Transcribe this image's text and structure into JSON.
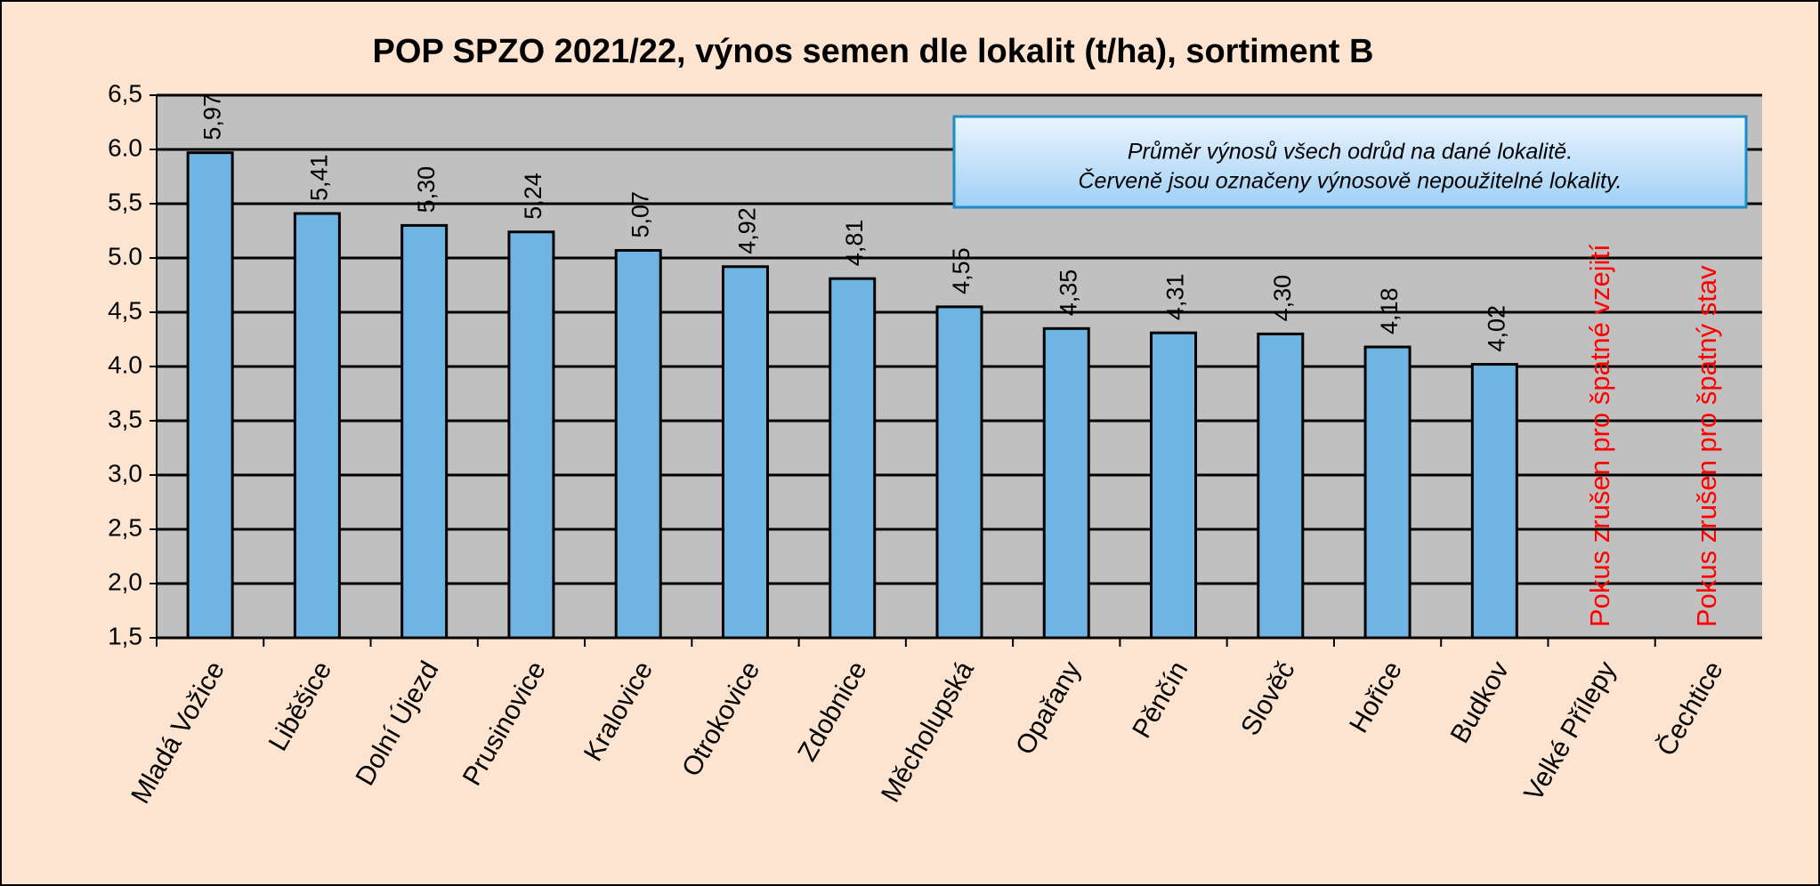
{
  "chart_data": {
    "type": "bar",
    "title": "POP SPZO 2021/22, výnos semen dle lokalit (t/ha), sortiment B",
    "categories": [
      "Mladá Vožice",
      "Liběšice",
      "Dolní Újezd",
      "Prusinovice",
      "Kralovice",
      "Otrokovice",
      "Zdobnice",
      "Měcholupská",
      "Opařany",
      "Pěnčín",
      "Slověč",
      "Hořice",
      "Budkov",
      "Velké Přílepy",
      "Čechtice"
    ],
    "values": [
      5.97,
      5.41,
      5.3,
      5.24,
      5.07,
      4.92,
      4.81,
      4.55,
      4.35,
      4.31,
      4.3,
      4.18,
      4.02,
      null,
      null
    ],
    "value_labels": [
      "5,97",
      "5,41",
      "5,30",
      "5,24",
      "5,07",
      "4,92",
      "4,81",
      "4,55",
      "4,35",
      "4,31",
      "4,30",
      "4,18",
      "4,02",
      null,
      null
    ],
    "bar_notes": [
      null,
      null,
      null,
      null,
      null,
      null,
      null,
      null,
      null,
      null,
      null,
      null,
      null,
      "Pokus zrušen pro špatné vzejití",
      "Pokus zrušen pro špatný stav"
    ],
    "color": "#6fb5e3",
    "ylim": [
      1.5,
      6.5
    ],
    "yticks": [
      {
        "value": 1.5,
        "label": "1,5"
      },
      {
        "value": 2.0,
        "label": "2,0"
      },
      {
        "value": 2.5,
        "label": "2,5"
      },
      {
        "value": 3.0,
        "label": "3,0"
      },
      {
        "value": 3.5,
        "label": "3,5"
      },
      {
        "value": 4.0,
        "label": "4.0"
      },
      {
        "value": 4.5,
        "label": "4,5"
      },
      {
        "value": 5.0,
        "label": "5.0"
      },
      {
        "value": 5.5,
        "label": "5,5"
      },
      {
        "value": 6.0,
        "label": "6.0"
      },
      {
        "value": 6.5,
        "label": "6,5"
      }
    ],
    "grid": true,
    "note": [
      "Průměr výnosů všech odrůd na dané lokalitě.",
      "Červeně jsou označeny výnosově nepoužitelné lokality."
    ]
  }
}
